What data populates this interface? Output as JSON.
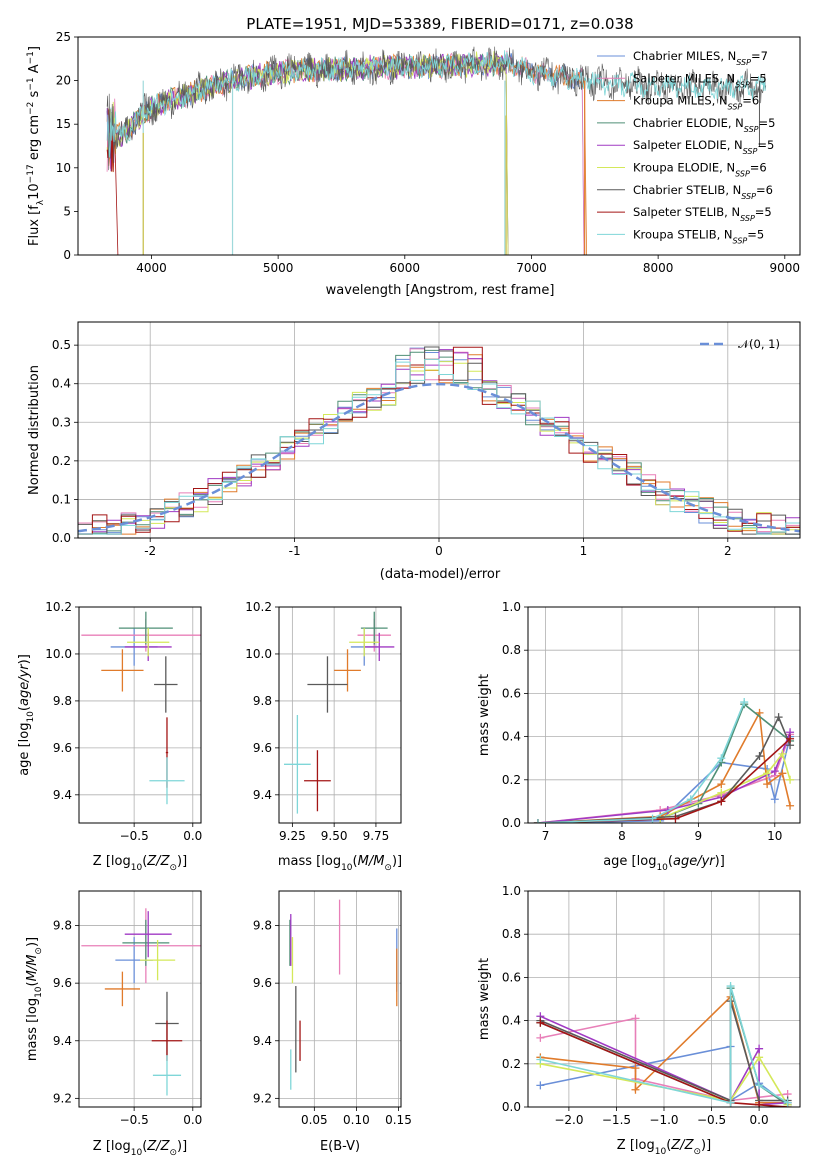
{
  "figure_title": "PLATE=1951, MJD=53389, FIBERID=0171, z=0.038",
  "colors": {
    "Chabrier MILES": "#6a8fd8",
    "Salpeter MILES": "#e87fb8",
    "Kroupa MILES": "#e07b2b",
    "Chabrier ELODIE": "#4f8f76",
    "Salpeter ELODIE": "#a03ac4",
    "Kroupa ELODIE": "#d4e85a",
    "Chabrier STELIB": "#5a5a5a",
    "Salpeter STELIB": "#a31515",
    "Kroupa STELIB": "#7fd6d8"
  },
  "legend": [
    {
      "model": "Chabrier MILES",
      "base": "Chabrier MILES, N",
      "sub": "SSP",
      "tail": "=7"
    },
    {
      "model": "Salpeter MILES",
      "base": "Salpeter MILES, N",
      "sub": "SSP",
      "tail": "=5"
    },
    {
      "model": "Kroupa MILES",
      "base": "Kroupa MILES, N",
      "sub": "SSP",
      "tail": "=6"
    },
    {
      "model": "Chabrier ELODIE",
      "base": "Chabrier ELODIE, N",
      "sub": "SSP",
      "tail": "=5"
    },
    {
      "model": "Salpeter ELODIE",
      "base": "Salpeter ELODIE, N",
      "sub": "SSP",
      "tail": "=5"
    },
    {
      "model": "Kroupa ELODIE",
      "base": "Kroupa ELODIE, N",
      "sub": "SSP",
      "tail": "=6"
    },
    {
      "model": "Chabrier STELIB",
      "base": "Chabrier STELIB, N",
      "sub": "SSP",
      "tail": "=6"
    },
    {
      "model": "Salpeter STELIB",
      "base": "Salpeter STELIB, N",
      "sub": "SSP",
      "tail": "=5"
    },
    {
      "model": "Kroupa STELIB",
      "base": "Kroupa STELIB, N",
      "sub": "SSP",
      "tail": "=5"
    }
  ],
  "normal_legend": "𝒩(0, 1)",
  "chart_data": [
    {
      "id": "spectrum",
      "type": "line",
      "title": "PLATE=1951, MJD=53389, FIBERID=0171, z=0.038",
      "xlabel": "wavelength [Angstrom, rest frame]",
      "ylabel": "Flux [fλ10⁻¹⁷ erg cm⁻² s⁻¹ A⁻¹]",
      "xlim": [
        3420,
        9120
      ],
      "ylim": [
        0,
        25
      ],
      "xticks": [
        4000,
        5000,
        6000,
        7000,
        8000,
        9000
      ],
      "yticks": [
        0,
        5,
        10,
        15,
        20,
        25
      ],
      "data_range": [
        3650,
        8850
      ],
      "continuum": [
        [
          3650,
          13.5
        ],
        [
          3800,
          14.0
        ],
        [
          3950,
          16.5
        ],
        [
          4100,
          17.5
        ],
        [
          4300,
          18.5
        ],
        [
          4500,
          19.5
        ],
        [
          4800,
          20.5
        ],
        [
          5000,
          21.0
        ],
        [
          5300,
          21.2
        ],
        [
          5600,
          21.4
        ],
        [
          6000,
          21.6
        ],
        [
          6300,
          21.6
        ],
        [
          6600,
          21.9
        ],
        [
          6800,
          22.0
        ],
        [
          7000,
          21.0
        ],
        [
          7300,
          20.3
        ],
        [
          7600,
          19.7
        ],
        [
          8000,
          19.4
        ],
        [
          8400,
          19.2
        ],
        [
          8850,
          19.3
        ]
      ],
      "series": [
        {
          "name": "Chabrier MILES",
          "end": 7400
        },
        {
          "name": "Salpeter MILES",
          "end": 7400
        },
        {
          "name": "Kroupa MILES",
          "end": 7420
        },
        {
          "name": "Chabrier ELODIE",
          "end": 6800
        },
        {
          "name": "Salpeter ELODIE",
          "end": 6800
        },
        {
          "name": "Kroupa ELODIE",
          "end": 6800
        },
        {
          "name": "Chabrier STELIB",
          "end": 8850
        },
        {
          "name": "Salpeter STELIB",
          "end": 3720
        },
        {
          "name": "Kroupa STELIB",
          "end": 8850
        }
      ]
    },
    {
      "id": "residuals",
      "type": "histogram",
      "xlabel": "(data-model)/error",
      "ylabel": "Normed distribution",
      "xlim": [
        -2.5,
        2.5
      ],
      "ylim": [
        0,
        0.56
      ],
      "xticks": [
        -2,
        -1,
        0,
        1,
        2
      ],
      "yticks": [
        0.0,
        0.1,
        0.2,
        0.3,
        0.4,
        0.5
      ],
      "bin_width": 0.1,
      "bins_start": -2.5,
      "base_values": [
        0.03,
        0.03,
        0.04,
        0.05,
        0.07,
        0.08,
        0.08,
        0.1,
        0.11,
        0.12,
        0.13,
        0.15,
        0.17,
        0.18,
        0.19,
        0.2,
        0.22,
        0.24,
        0.26,
        0.28,
        0.3,
        0.31,
        0.33,
        0.35,
        0.37,
        0.4,
        0.43,
        0.45,
        0.46,
        0.5,
        0.45,
        0.4,
        0.38,
        0.37,
        0.36,
        0.38,
        0.4,
        0.39,
        0.36,
        0.33,
        0.3,
        0.27,
        0.25,
        0.22,
        0.2,
        0.17,
        0.15,
        0.13,
        0.12,
        0.11,
        0.09,
        0.08,
        0.07,
        0.06,
        0.05,
        0.05,
        0.04,
        0.04,
        0.03,
        0.03,
        0.03,
        0.02,
        0.03,
        0.03,
        0.02,
        0.02,
        0.02,
        0.02,
        0.02,
        0.02,
        0.02,
        0.02,
        0.02,
        0.02,
        0.02,
        0.02,
        0.02,
        0.02,
        0.02,
        0.02,
        0.02,
        0.02,
        0.02,
        0.02,
        0.02,
        0.02,
        0.02,
        0.02,
        0.02,
        0.02,
        0.02,
        0.02,
        0.02,
        0.02,
        0.02,
        0.02,
        0.02,
        0.02,
        0.02,
        0.02
      ],
      "normal": {
        "mu": 0,
        "sigma": 1
      }
    },
    {
      "id": "age-vs-Z",
      "type": "errorbar",
      "xlabel": "Z [log10(Z/Z⊙)]",
      "ylabel": "age  [log10(age/yr)]",
      "xlim": [
        -0.97,
        0.07
      ],
      "ylim": [
        9.28,
        10.2
      ],
      "xticks": [
        -0.5,
        0.0
      ],
      "yticks": [
        9.4,
        9.6,
        9.8,
        10.0,
        10.2
      ],
      "points": [
        {
          "name": "Chabrier MILES",
          "x": -0.5,
          "xe": 0.2,
          "y": 10.03,
          "ye": 0.08
        },
        {
          "name": "Salpeter MILES",
          "x": -0.4,
          "xe": 0.55,
          "y": 10.08,
          "ye": 0.07
        },
        {
          "name": "Kroupa MILES",
          "x": -0.6,
          "xe": 0.18,
          "y": 9.93,
          "ye": 0.09
        },
        {
          "name": "Chabrier ELODIE",
          "x": -0.4,
          "xe": 0.23,
          "y": 10.11,
          "ye": 0.07
        },
        {
          "name": "Salpeter ELODIE",
          "x": -0.38,
          "xe": 0.2,
          "y": 10.03,
          "ye": 0.06
        },
        {
          "name": "Kroupa ELODIE",
          "x": -0.38,
          "xe": 0.18,
          "y": 10.05,
          "ye": 0.06
        },
        {
          "name": "Chabrier STELIB",
          "x": -0.23,
          "xe": 0.1,
          "y": 9.87,
          "ye": 0.12
        },
        {
          "name": "Salpeter STELIB",
          "x": -0.22,
          "xe": 0.01,
          "y": 9.58,
          "ye": 0.15
        },
        {
          "name": "Kroupa STELIB",
          "x": -0.22,
          "xe": 0.15,
          "y": 9.46,
          "ye": 0.1
        }
      ]
    },
    {
      "id": "age-vs-mass",
      "type": "errorbar",
      "xlabel": "mass [log10(M/M⊙)]",
      "ylabel": "",
      "xlim": [
        9.17,
        9.9
      ],
      "ylim": [
        9.28,
        10.2
      ],
      "xticks": [
        9.25,
        9.5,
        9.75
      ],
      "yticks": [
        9.4,
        9.6,
        9.8,
        10.0,
        10.2
      ],
      "points": [
        {
          "name": "Chabrier MILES",
          "x": 9.68,
          "xe": 0.08,
          "y": 10.03,
          "ye": 0.08
        },
        {
          "name": "Salpeter MILES",
          "x": 9.74,
          "xe": 0.1,
          "y": 10.08,
          "ye": 0.07
        },
        {
          "name": "Kroupa MILES",
          "x": 9.58,
          "xe": 0.08,
          "y": 9.93,
          "ye": 0.09
        },
        {
          "name": "Chabrier ELODIE",
          "x": 9.74,
          "xe": 0.08,
          "y": 10.11,
          "ye": 0.07
        },
        {
          "name": "Salpeter ELODIE",
          "x": 9.77,
          "xe": 0.09,
          "y": 10.03,
          "ye": 0.06
        },
        {
          "name": "Kroupa ELODIE",
          "x": 9.68,
          "xe": 0.09,
          "y": 10.05,
          "ye": 0.06
        },
        {
          "name": "Chabrier STELIB",
          "x": 9.46,
          "xe": 0.12,
          "y": 9.87,
          "ye": 0.12
        },
        {
          "name": "Salpeter STELIB",
          "x": 9.4,
          "xe": 0.08,
          "y": 9.46,
          "ye": 0.13
        },
        {
          "name": "Kroupa STELIB",
          "x": 9.28,
          "xe": 0.08,
          "y": 9.53,
          "ye": 0.21
        }
      ]
    },
    {
      "id": "weight-vs-age",
      "type": "line",
      "xlabel": "age  [log10(age/yr)]",
      "ylabel": "mass weight",
      "xlim": [
        6.77,
        10.33
      ],
      "ylim": [
        0,
        1
      ],
      "xticks": [
        7,
        8,
        9,
        10
      ],
      "yticks": [
        0.0,
        0.2,
        0.4,
        0.6,
        0.8,
        1.0
      ],
      "series": [
        {
          "name": "Chabrier MILES",
          "x": [
            6.9,
            8.5,
            9.3,
            9.9,
            10.0,
            10.2
          ],
          "y": [
            0.0,
            0.01,
            0.28,
            0.25,
            0.11,
            0.4
          ]
        },
        {
          "name": "Salpeter MILES",
          "x": [
            6.9,
            8.5,
            9.3,
            10.0,
            10.2
          ],
          "y": [
            0.0,
            0.06,
            0.13,
            0.22,
            0.41
          ]
        },
        {
          "name": "Kroupa MILES",
          "x": [
            6.9,
            8.5,
            9.3,
            9.8,
            9.9,
            10.1,
            10.2
          ],
          "y": [
            0.0,
            0.03,
            0.18,
            0.51,
            0.18,
            0.23,
            0.08
          ]
        },
        {
          "name": "Chabrier ELODIE",
          "x": [
            6.9,
            8.5,
            9.0,
            9.3,
            9.6,
            10.2
          ],
          "y": [
            0.0,
            0.02,
            0.09,
            0.28,
            0.55,
            0.38
          ]
        },
        {
          "name": "Salpeter ELODIE",
          "x": [
            6.9,
            8.6,
            9.3,
            10.0,
            10.2
          ],
          "y": [
            0.0,
            0.06,
            0.12,
            0.24,
            0.42
          ]
        },
        {
          "name": "Kroupa ELODIE",
          "x": [
            6.9,
            8.5,
            9.3,
            9.9,
            10.1,
            10.2
          ],
          "y": [
            0.0,
            0.02,
            0.14,
            0.23,
            0.32,
            0.2
          ]
        },
        {
          "name": "Chabrier STELIB",
          "x": [
            6.9,
            8.7,
            9.3,
            9.8,
            10.05,
            10.2
          ],
          "y": [
            0.0,
            0.03,
            0.1,
            0.31,
            0.49,
            0.36
          ]
        },
        {
          "name": "Salpeter STELIB",
          "x": [
            6.9,
            8.7,
            9.3,
            10.2
          ],
          "y": [
            0.0,
            0.02,
            0.1,
            0.39
          ]
        },
        {
          "name": "Kroupa STELIB",
          "x": [
            6.9,
            8.4,
            8.9,
            9.3,
            9.6
          ],
          "y": [
            0.0,
            0.02,
            0.11,
            0.3,
            0.56
          ]
        }
      ]
    },
    {
      "id": "mass-vs-Z",
      "type": "errorbar",
      "xlabel": "Z [log10(Z/Z⊙)]",
      "ylabel": "mass [log10(M/M⊙)]",
      "xlim": [
        -0.97,
        0.07
      ],
      "ylim": [
        9.17,
        9.92
      ],
      "xticks": [
        -0.5,
        0.0
      ],
      "yticks": [
        9.2,
        9.4,
        9.6,
        9.8
      ],
      "points": [
        {
          "name": "Chabrier MILES",
          "x": -0.5,
          "xe": 0.16,
          "y": 9.68,
          "ye": 0.08
        },
        {
          "name": "Salpeter MILES",
          "x": -0.4,
          "xe": 0.55,
          "y": 9.73,
          "ye": 0.13
        },
        {
          "name": "Kroupa MILES",
          "x": -0.6,
          "xe": 0.15,
          "y": 9.58,
          "ye": 0.06
        },
        {
          "name": "Chabrier ELODIE",
          "x": -0.4,
          "xe": 0.2,
          "y": 9.74,
          "ye": 0.08
        },
        {
          "name": "Salpeter ELODIE",
          "x": -0.38,
          "xe": 0.2,
          "y": 9.77,
          "ye": 0.08
        },
        {
          "name": "Kroupa ELODIE",
          "x": -0.3,
          "xe": 0.15,
          "y": 9.68,
          "ye": 0.07
        },
        {
          "name": "Chabrier STELIB",
          "x": -0.22,
          "xe": 0.1,
          "y": 9.46,
          "ye": 0.11
        },
        {
          "name": "Salpeter STELIB",
          "x": -0.22,
          "xe": 0.13,
          "y": 9.4,
          "ye": 0.07
        },
        {
          "name": "Kroupa STELIB",
          "x": -0.22,
          "xe": 0.12,
          "y": 9.28,
          "ye": 0.07
        }
      ]
    },
    {
      "id": "mass-vs-EBV",
      "type": "errorbar",
      "xlabel": "E(B-V)",
      "ylabel": "",
      "xlim": [
        0.008,
        0.153
      ],
      "ylim": [
        9.17,
        9.92
      ],
      "xticks": [
        0.05,
        0.1,
        0.15
      ],
      "yticks": [
        9.2,
        9.4,
        9.6,
        9.8
      ],
      "points": [
        {
          "name": "Chabrier MILES",
          "x": 0.148,
          "xe": 0.0,
          "y": 9.68,
          "ye": 0.11
        },
        {
          "name": "Salpeter MILES",
          "x": 0.08,
          "xe": 0.0,
          "y": 9.76,
          "ye": 0.13
        },
        {
          "name": "Kroupa MILES",
          "x": 0.148,
          "xe": 0.0,
          "y": 9.62,
          "ye": 0.1
        },
        {
          "name": "Chabrier ELODIE",
          "x": 0.021,
          "xe": 0.0,
          "y": 9.74,
          "ye": 0.08
        },
        {
          "name": "Salpeter ELODIE",
          "x": 0.022,
          "xe": 0.0,
          "y": 9.75,
          "ye": 0.09
        },
        {
          "name": "Kroupa ELODIE",
          "x": 0.024,
          "xe": 0.0,
          "y": 9.68,
          "ye": 0.08
        },
        {
          "name": "Chabrier STELIB",
          "x": 0.028,
          "xe": 0.0,
          "y": 9.44,
          "ye": 0.15
        },
        {
          "name": "Salpeter STELIB",
          "x": 0.033,
          "xe": 0.0,
          "y": 9.4,
          "ye": 0.07
        },
        {
          "name": "Kroupa STELIB",
          "x": 0.022,
          "xe": 0.0,
          "y": 9.3,
          "ye": 0.07
        }
      ]
    },
    {
      "id": "weight-vs-Z",
      "type": "line",
      "xlabel": "Z [log10(Z/Z⊙)]",
      "ylabel": "mass weight",
      "xlim": [
        -2.43,
        0.43
      ],
      "ylim": [
        0,
        1
      ],
      "xticks": [
        -2.0,
        -1.5,
        -1.0,
        -0.5,
        0.0
      ],
      "yticks": [
        0.0,
        0.2,
        0.4,
        0.6,
        0.8,
        1.0
      ],
      "series": [
        {
          "name": "Chabrier MILES",
          "x": [
            -2.3,
            -0.3,
            -0.3,
            0.0,
            0.3
          ],
          "y": [
            0.1,
            0.28,
            0.03,
            0.11,
            0.01
          ]
        },
        {
          "name": "Salpeter MILES",
          "x": [
            -2.3,
            -1.3,
            -1.3,
            -0.3,
            0.3
          ],
          "y": [
            0.32,
            0.41,
            0.13,
            0.03,
            0.06
          ]
        },
        {
          "name": "Kroupa MILES",
          "x": [
            -2.3,
            -1.3,
            -1.3,
            -0.3,
            0.0,
            0.3
          ],
          "y": [
            0.23,
            0.18,
            0.08,
            0.51,
            0.02,
            0.02
          ]
        },
        {
          "name": "Chabrier ELODIE",
          "x": [
            -2.3,
            -0.3,
            -0.3,
            0.0,
            0.3
          ],
          "y": [
            0.39,
            0.02,
            0.55,
            0.1,
            0.01
          ]
        },
        {
          "name": "Salpeter ELODIE",
          "x": [
            -2.3,
            -0.3,
            0.0,
            0.0,
            0.3
          ],
          "y": [
            0.42,
            0.03,
            0.27,
            0.01,
            0.02
          ]
        },
        {
          "name": "Kroupa ELODIE",
          "x": [
            -2.3,
            -0.3,
            0.0,
            0.3
          ],
          "y": [
            0.2,
            0.03,
            0.23,
            0.01
          ]
        },
        {
          "name": "Chabrier STELIB",
          "x": [
            -2.3,
            -0.3,
            -0.3,
            0.0,
            0.3
          ],
          "y": [
            0.4,
            0.03,
            0.49,
            0.03,
            0.03
          ]
        },
        {
          "name": "Salpeter STELIB",
          "x": [
            -2.3,
            -0.3,
            0.0,
            0.3
          ],
          "y": [
            0.39,
            0.02,
            0.01,
            0.0
          ]
        },
        {
          "name": "Kroupa STELIB",
          "x": [
            -2.3,
            -0.3,
            -0.3,
            0.0,
            0.3
          ],
          "y": [
            0.22,
            0.02,
            0.56,
            0.1,
            0.02
          ]
        }
      ]
    }
  ]
}
